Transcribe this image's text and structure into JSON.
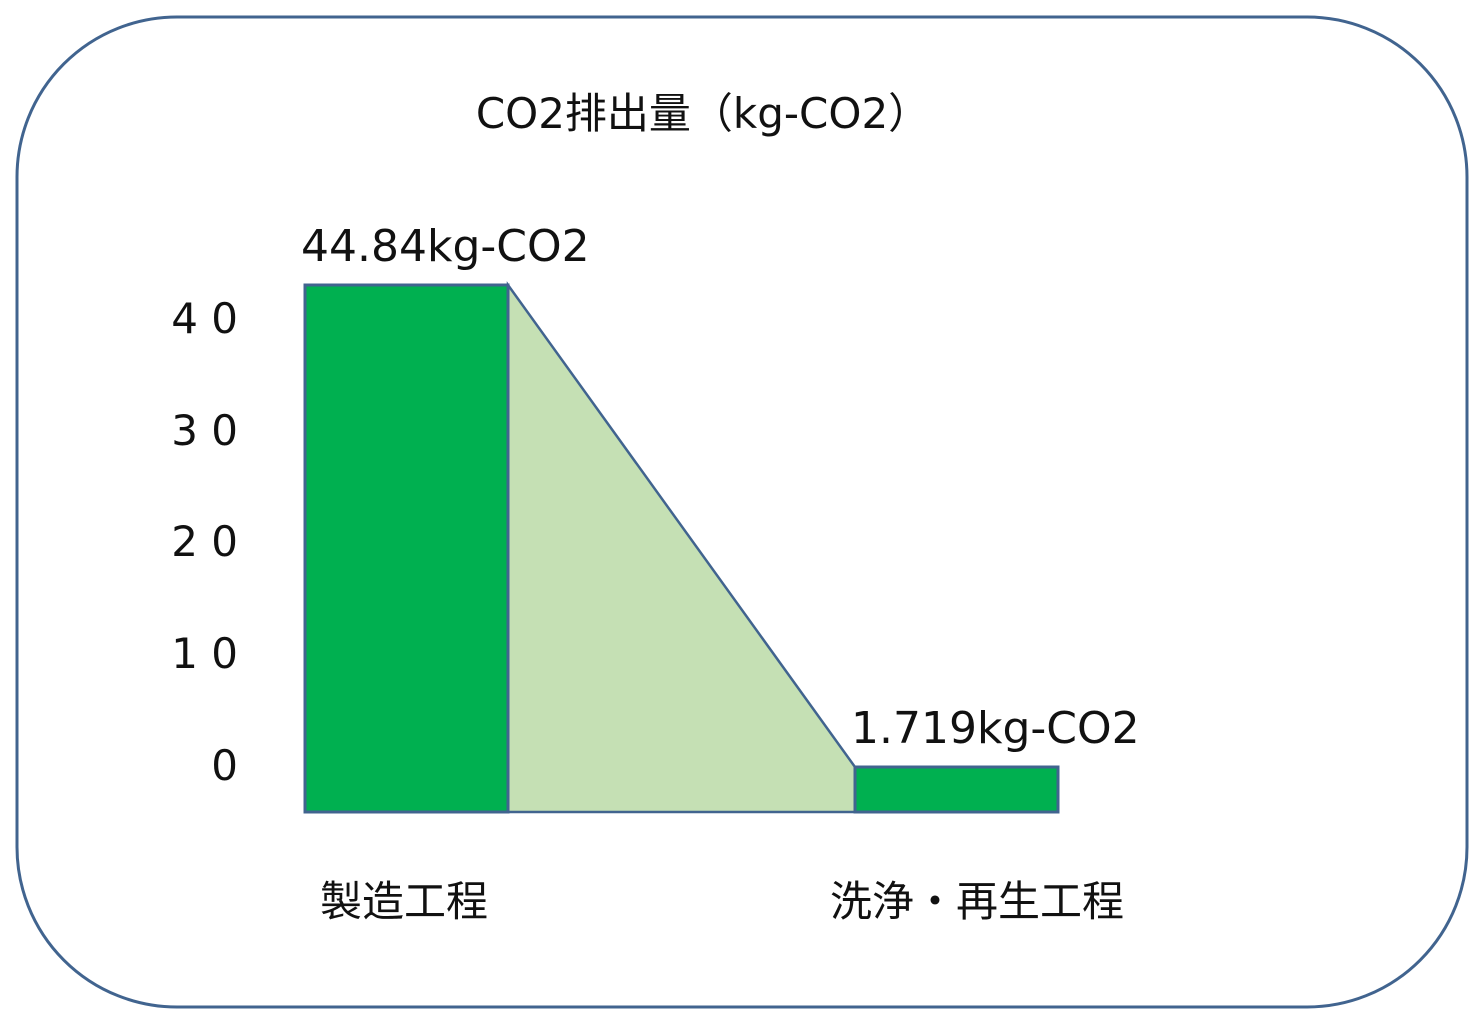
{
  "chart_data": {
    "type": "bar",
    "title": "CO2排出量（kg-CO2）",
    "categories": [
      "製造工程",
      "洗浄・再生工程"
    ],
    "values": [
      44.84,
      1.719
    ],
    "data_labels": [
      "44.84kg-CO2",
      "1.719kg-CO2"
    ],
    "yticks": [
      40,
      30,
      20,
      10,
      0
    ],
    "ytick_labels": [
      "4 0",
      "3 0",
      "2 0",
      "1 0",
      "0"
    ],
    "ylim": [
      0,
      44.84
    ],
    "xlabel": "",
    "ylabel": "",
    "grid": false,
    "legend": "none",
    "colors": {
      "bar": "#00b050",
      "connector": "#c5e0b4",
      "outline": "#41648f",
      "frame": "#41648f"
    }
  }
}
